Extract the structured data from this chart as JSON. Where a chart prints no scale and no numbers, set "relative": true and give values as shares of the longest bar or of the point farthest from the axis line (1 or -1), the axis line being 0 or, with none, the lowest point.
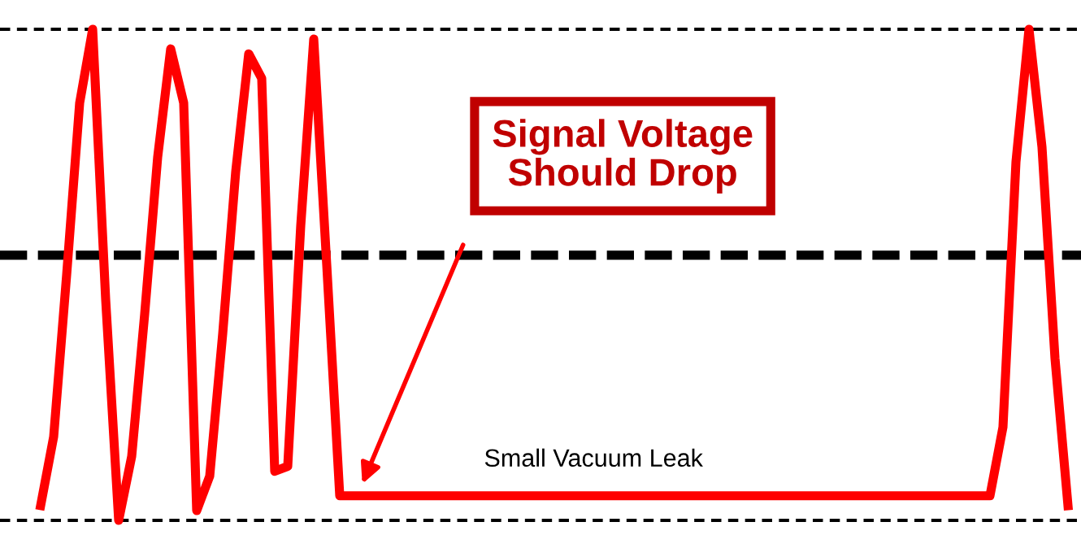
{
  "chart_data": {
    "type": "line",
    "relative": true,
    "categories": [
      null,
      null,
      null,
      null,
      null,
      null,
      null,
      null,
      null,
      null,
      null,
      null,
      null,
      null,
      null,
      null,
      null,
      null,
      null,
      null,
      null,
      null,
      null,
      null,
      null,
      null,
      null,
      null,
      null,
      null,
      null,
      null,
      null,
      null,
      null,
      null,
      null,
      null,
      null,
      null,
      null,
      null,
      null,
      null,
      null,
      null,
      null,
      null,
      null,
      null,
      null,
      null,
      null,
      null,
      null,
      null,
      null,
      null,
      null,
      null,
      null,
      null,
      null,
      null,
      null,
      null,
      null,
      null,
      null,
      null,
      null,
      null,
      null,
      null,
      null,
      null,
      null,
      null,
      null,
      null
    ],
    "series": [
      {
        "color": "#ff0000",
        "values": [
          0.03,
          0.17,
          0.5,
          0.85,
          1,
          0.45,
          0,
          0.13,
          0.42,
          0.74,
          0.96,
          0.85,
          0.02,
          0.09,
          0.38,
          0.71,
          0.95,
          0.9,
          0.1,
          0.11,
          0.6,
          0.98,
          0.52,
          0.05,
          0.05,
          0.05,
          0.05,
          0.05,
          0.05,
          0.05,
          0.05,
          0.05,
          0.05,
          0.05,
          0.05,
          0.05,
          0.05,
          0.05,
          0.05,
          0.05,
          0.05,
          0.05,
          0.05,
          0.05,
          0.05,
          0.05,
          0.05,
          0.05,
          0.05,
          0.05,
          0.05,
          0.05,
          0.05,
          0.05,
          0.05,
          0.05,
          0.05,
          0.05,
          0.05,
          0.05,
          0.05,
          0.05,
          0.05,
          0.05,
          0.05,
          0.05,
          0.05,
          0.05,
          0.05,
          0.05,
          0.05,
          0.05,
          0.05,
          0.05,
          0.19,
          0.73,
          1,
          0.76,
          0.33,
          0.03
        ]
      }
    ],
    "ref_lines": [
      {
        "axis": "y",
        "value": 1,
        "color": "#000000",
        "line_style": "dashed"
      },
      {
        "axis": "y",
        "value": 0.54,
        "color": "#000000",
        "line_style": "dashed"
      },
      {
        "axis": "y",
        "value": 0,
        "color": "#000000",
        "line_style": "dashed"
      }
    ],
    "annotations": [
      "Signal Voltage\nShould Drop",
      "Small Vacuum Leak"
    ],
    "legend": false,
    "marker": "none",
    "line_style": "solid"
  }
}
